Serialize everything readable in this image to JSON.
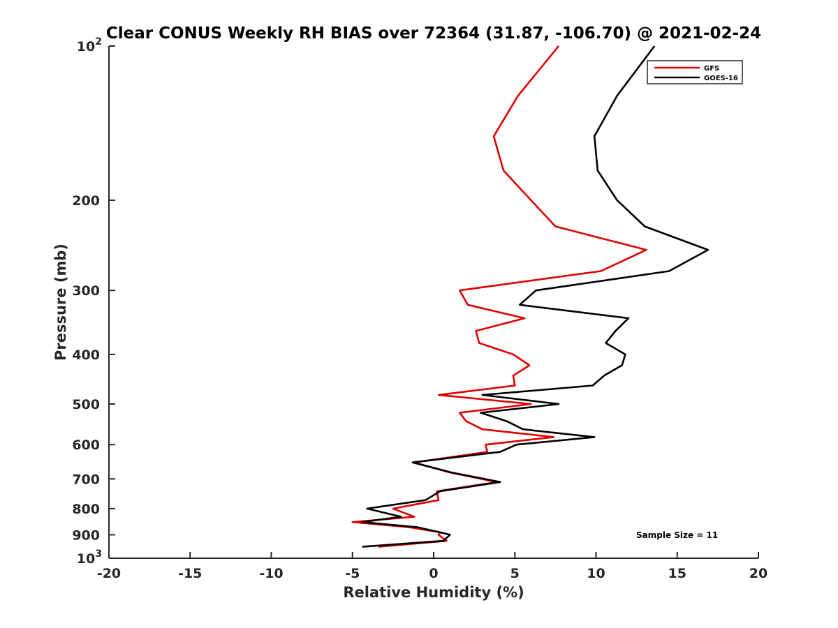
{
  "chart_data": {
    "type": "line",
    "title": "Clear CONUS Weekly RH BIAS over 72364 (31.87, -106.70) @ 2021-02-24",
    "xlabel": "Relative Humidity (%)",
    "ylabel": "Pressure (mb)",
    "xlim": [
      -20,
      20
    ],
    "ylim": [
      100,
      1000
    ],
    "y_scale": "log",
    "y_reversed": true,
    "x_ticks": [
      {
        "value": -20,
        "label": "-20"
      },
      {
        "value": -15,
        "label": "-15"
      },
      {
        "value": -10,
        "label": "-10"
      },
      {
        "value": -5,
        "label": "-5"
      },
      {
        "value": 0,
        "label": "0"
      },
      {
        "value": 5,
        "label": "5"
      },
      {
        "value": 10,
        "label": "10"
      },
      {
        "value": 15,
        "label": "15"
      },
      {
        "value": 20,
        "label": "20"
      }
    ],
    "y_ticks": [
      {
        "value": 100,
        "base": "10",
        "exp": "2"
      },
      {
        "value": 200,
        "label": "200"
      },
      {
        "value": 300,
        "label": "300"
      },
      {
        "value": 400,
        "label": "400"
      },
      {
        "value": 500,
        "label": "500"
      },
      {
        "value": 600,
        "label": "600"
      },
      {
        "value": 700,
        "label": "700"
      },
      {
        "value": 800,
        "label": "800"
      },
      {
        "value": 900,
        "label": "900"
      },
      {
        "value": 1000,
        "base": "10",
        "exp": "3"
      }
    ],
    "grid": false,
    "legend_position": "top-right",
    "annotation": "Sample Size = 11",
    "series": [
      {
        "name": "GFS",
        "color": "#e00000",
        "points": [
          [
            7.7,
            100
          ],
          [
            5.2,
            125
          ],
          [
            3.7,
            150
          ],
          [
            4.3,
            175
          ],
          [
            6.0,
            200
          ],
          [
            7.5,
            225
          ],
          [
            13.1,
            250
          ],
          [
            10.3,
            275
          ],
          [
            1.6,
            300
          ],
          [
            2.1,
            320
          ],
          [
            5.6,
            340
          ],
          [
            2.6,
            360
          ],
          [
            2.8,
            380
          ],
          [
            4.9,
            400
          ],
          [
            5.9,
            420
          ],
          [
            4.9,
            440
          ],
          [
            5.0,
            460
          ],
          [
            0.3,
            480
          ],
          [
            6.0,
            500
          ],
          [
            1.6,
            520
          ],
          [
            2.0,
            540
          ],
          [
            3.0,
            560
          ],
          [
            7.4,
            580
          ],
          [
            3.2,
            600
          ],
          [
            3.3,
            620
          ],
          [
            -1.2,
            650
          ],
          [
            1.0,
            680
          ],
          [
            3.9,
            710
          ],
          [
            0.2,
            740
          ],
          [
            0.3,
            770
          ],
          [
            -2.5,
            800
          ],
          [
            -1.2,
            830
          ],
          [
            -5.0,
            850
          ],
          [
            -1.5,
            870
          ],
          [
            0.4,
            890
          ],
          [
            0.3,
            900
          ],
          [
            0.8,
            925
          ],
          [
            -3.4,
            950
          ]
        ]
      },
      {
        "name": "GOES-16",
        "color": "#000000",
        "points": [
          [
            13.6,
            100
          ],
          [
            11.3,
            125
          ],
          [
            9.9,
            150
          ],
          [
            10.1,
            175
          ],
          [
            11.3,
            200
          ],
          [
            13.0,
            225
          ],
          [
            16.9,
            250
          ],
          [
            14.5,
            275
          ],
          [
            6.3,
            300
          ],
          [
            5.3,
            320
          ],
          [
            12.0,
            340
          ],
          [
            11.2,
            360
          ],
          [
            10.6,
            380
          ],
          [
            11.8,
            400
          ],
          [
            11.6,
            420
          ],
          [
            10.5,
            440
          ],
          [
            9.8,
            460
          ],
          [
            3.0,
            480
          ],
          [
            7.7,
            500
          ],
          [
            2.9,
            520
          ],
          [
            4.5,
            540
          ],
          [
            5.5,
            560
          ],
          [
            9.9,
            580
          ],
          [
            5.1,
            600
          ],
          [
            4.1,
            620
          ],
          [
            -1.3,
            650
          ],
          [
            1.1,
            680
          ],
          [
            4.1,
            710
          ],
          [
            0.4,
            740
          ],
          [
            -0.5,
            770
          ],
          [
            -4.1,
            800
          ],
          [
            -2.0,
            830
          ],
          [
            -4.4,
            850
          ],
          [
            -1.0,
            870
          ],
          [
            0.4,
            890
          ],
          [
            1.0,
            900
          ],
          [
            0.6,
            925
          ],
          [
            -4.4,
            950
          ]
        ]
      }
    ]
  }
}
